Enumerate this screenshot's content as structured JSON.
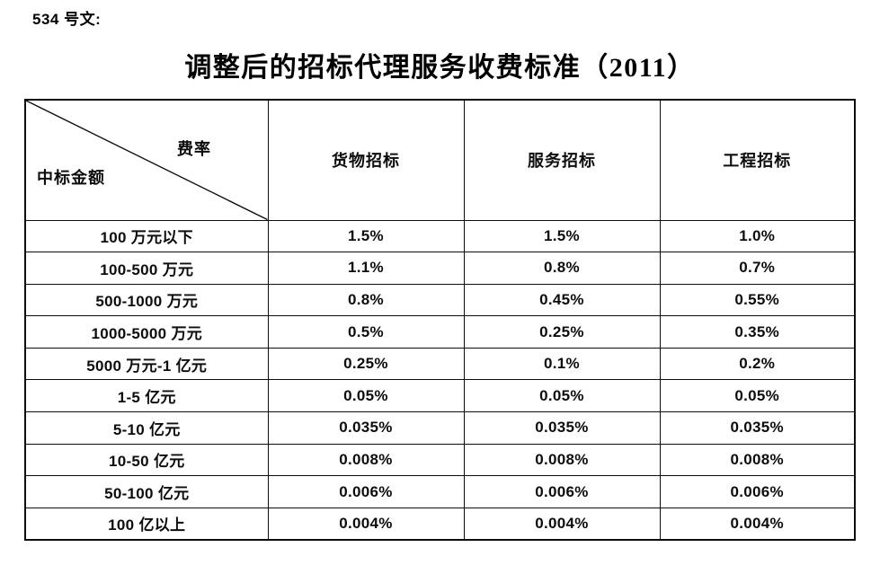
{
  "doc": {
    "doc_number": "534 号文:",
    "title": "调整后的招标代理服务收费标准（2011）"
  },
  "table": {
    "corner": {
      "top_right": "费率",
      "bottom_left": "中标金额"
    },
    "columns": [
      "货物招标",
      "服务招标",
      "工程招标"
    ],
    "rows": [
      {
        "label": "100 万元以下",
        "values": [
          "1.5%",
          "1.5%",
          "1.0%"
        ]
      },
      {
        "label": "100-500 万元",
        "values": [
          "1.1%",
          "0.8%",
          "0.7%"
        ]
      },
      {
        "label": "500-1000 万元",
        "values": [
          "0.8%",
          "0.45%",
          "0.55%"
        ]
      },
      {
        "label": "1000-5000 万元",
        "values": [
          "0.5%",
          "0.25%",
          "0.35%"
        ]
      },
      {
        "label": "5000 万元-1 亿元",
        "values": [
          "0.25%",
          "0.1%",
          "0.2%"
        ]
      },
      {
        "label": "1-5 亿元",
        "values": [
          "0.05%",
          "0.05%",
          "0.05%"
        ]
      },
      {
        "label": "5-10 亿元",
        "values": [
          "0.035%",
          "0.035%",
          "0.035%"
        ]
      },
      {
        "label": "10-50 亿元",
        "values": [
          "0.008%",
          "0.008%",
          "0.008%"
        ]
      },
      {
        "label": "50-100 亿元",
        "values": [
          "0.006%",
          "0.006%",
          "0.006%"
        ]
      },
      {
        "label": "100 亿以上",
        "values": [
          "0.004%",
          "0.004%",
          "0.004%"
        ]
      }
    ]
  },
  "colors": {
    "text": "#0d0d0d",
    "border": "#0d0d0d",
    "background": "#ffffff"
  }
}
